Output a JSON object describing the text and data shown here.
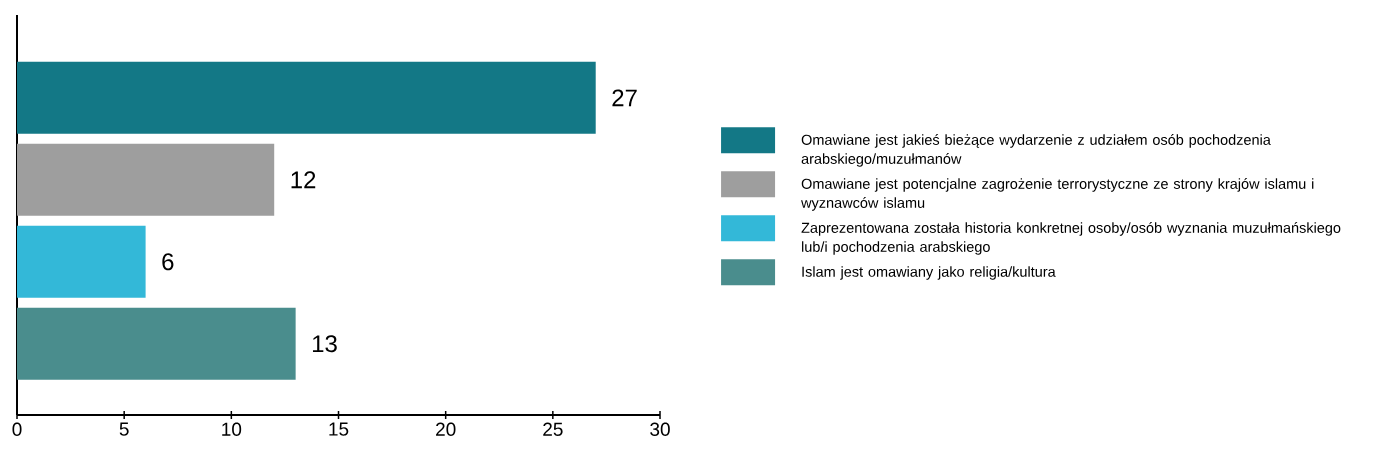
{
  "chart_data": {
    "type": "bar",
    "orientation": "horizontal",
    "categories": [
      null,
      null,
      null,
      null
    ],
    "series": [
      {
        "name": "Omawiane jest jakieś bieżące wydarzenie z udziałem osób pochodzenia arabskiego/muzułmanów",
        "color": "#137886",
        "values": [
          27,
          null,
          null,
          null
        ]
      },
      {
        "name": "Omawiane jest potencjalne zagrożenie terrorystyczne ze strony krajów islamu i wyznawców islamu",
        "color": "#9e9e9e",
        "values": [
          null,
          12,
          null,
          null
        ]
      },
      {
        "name": "Zaprezentowana została historia konkretnej osoby/osób wyznania muzułmańskiego lub/i pochodzenia arabskiego",
        "color": "#33b8d8",
        "values": [
          null,
          null,
          6,
          null
        ]
      },
      {
        "name": "Islam jest omawiany jako religia/kultura",
        "color": "#4a8d8d",
        "values": [
          null,
          null,
          null,
          13
        ]
      }
    ],
    "xlim": [
      0,
      30
    ],
    "xticks": [
      0,
      5,
      10,
      15,
      20,
      25,
      30
    ],
    "data_labels": true,
    "legend": "right"
  }
}
